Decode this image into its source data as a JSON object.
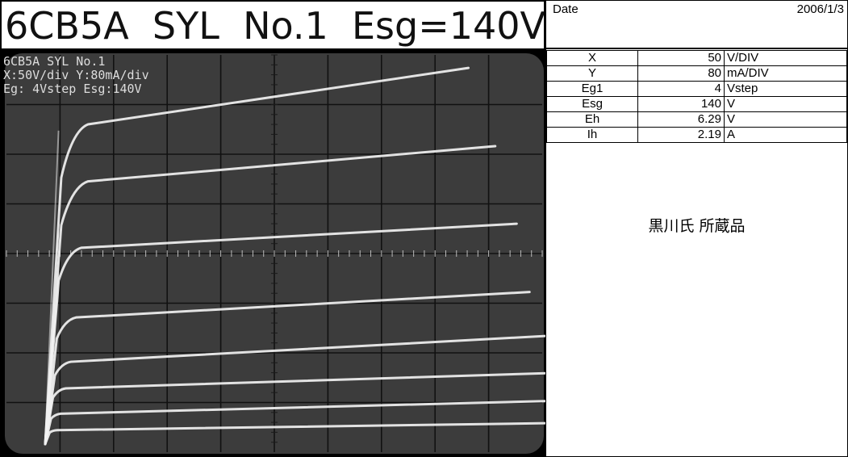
{
  "title": "6CB5A  SYL  No.1  Esg=140V",
  "scope_labels": [
    "6CB5A SYL No.1",
    "X:50V/div Y:80mA/div",
    "Eg: 4Vstep Esg:140V"
  ],
  "date": {
    "label": "Date",
    "value": "2006/1/3"
  },
  "params": [
    {
      "name": "X",
      "value": "50",
      "unit": "V/DIV"
    },
    {
      "name": "Y",
      "value": "80",
      "unit": "mA/DIV"
    },
    {
      "name": "Eg1",
      "value": "4",
      "unit": "Vstep"
    },
    {
      "name": "Esg",
      "value": "140",
      "unit": "V"
    },
    {
      "name": "Eh",
      "value": "6.29",
      "unit": "V"
    },
    {
      "name": "Ih",
      "value": "2.19",
      "unit": "A"
    }
  ],
  "owner": "黒川氏  所蔵品",
  "colors": {
    "screen": "#3c3c3c",
    "grid": "#111111",
    "trace": "#f2f2f2"
  },
  "trace_curves": [
    {
      "knee_v": 25,
      "end_v": 395,
      "knee_ma": 505,
      "end_ma": 606
    },
    {
      "knee_v": 25,
      "end_v": 420,
      "knee_ma": 415,
      "end_ma": 480
    },
    {
      "knee_v": 21,
      "end_v": 440,
      "knee_ma": 310,
      "end_ma": 355
    },
    {
      "knee_v": 18,
      "end_v": 452,
      "knee_ma": 200,
      "end_ma": 245
    },
    {
      "knee_v": 15,
      "end_v": 476,
      "knee_ma": 130,
      "end_ma": 175
    },
    {
      "knee_v": 12,
      "end_v": 482,
      "knee_ma": 88,
      "end_ma": 115
    },
    {
      "knee_v": 9,
      "end_v": 482,
      "knee_ma": 48,
      "end_ma": 70
    },
    {
      "knee_v": 7,
      "end_v": 482,
      "knee_ma": 22,
      "end_ma": 34
    }
  ]
}
